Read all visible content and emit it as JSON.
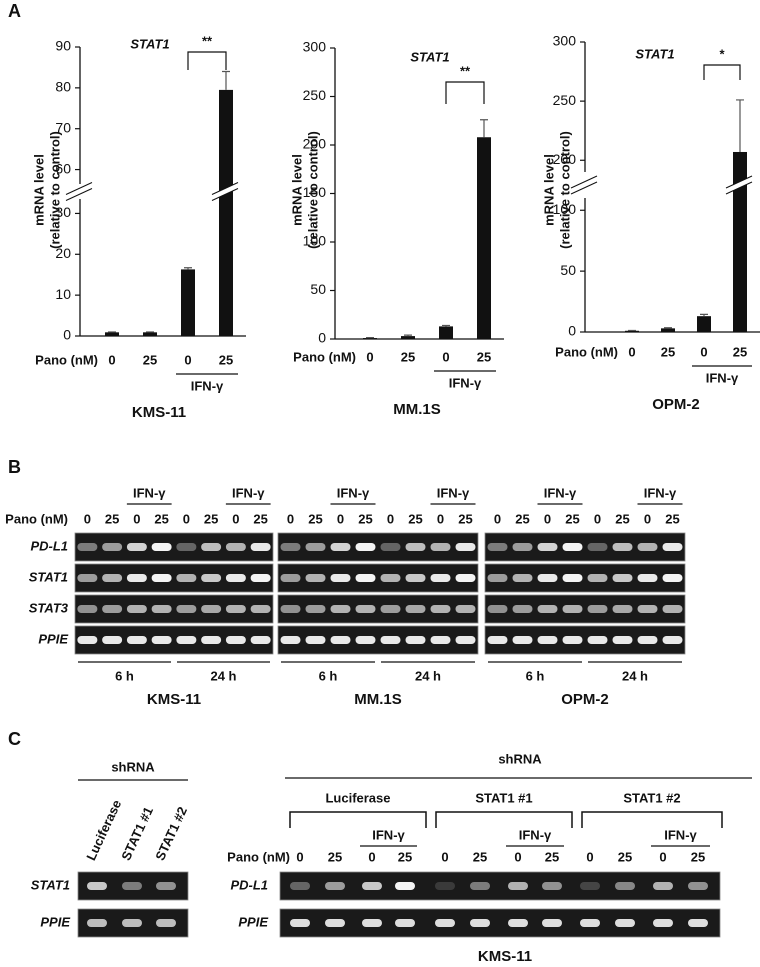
{
  "panel_a": {
    "label": "A"
  },
  "chart_data": [
    {
      "type": "bar",
      "title": "STAT1",
      "ylabel": [
        "mRNA level",
        "(relative to control)"
      ],
      "x_title": "Pano (nM)",
      "categories": [
        "0",
        "25",
        "0",
        "25"
      ],
      "group_label": "IFN-γ",
      "significance": "**",
      "cell_line": "KMS-11",
      "values": [
        0.9,
        0.9,
        16.3,
        79.5
      ],
      "errors": [
        0.1,
        0.1,
        0.4,
        4.5
      ],
      "color": "#111111",
      "ylim": [
        0,
        90
      ],
      "axis_break": [
        35,
        55
      ],
      "yticks": [
        0,
        10,
        20,
        30,
        60,
        70,
        80,
        90
      ]
    },
    {
      "type": "bar",
      "title": "STAT1",
      "ylabel": [
        "mRNA level",
        "(relative to control)"
      ],
      "x_title": "Pano (nM)",
      "categories": [
        "0",
        "25",
        "0",
        "25"
      ],
      "group_label": "IFN-γ",
      "significance": "**",
      "cell_line": "MM.1S",
      "values": [
        1,
        3,
        13,
        208
      ],
      "errors": [
        0.5,
        1,
        1,
        18
      ],
      "color": "#111111",
      "ylim": [
        0,
        300
      ],
      "yticks": [
        0,
        50,
        100,
        150,
        200,
        250,
        300
      ]
    },
    {
      "type": "bar",
      "title": "STAT1",
      "ylabel": [
        "mRNA level",
        "(relative to control)"
      ],
      "x_title": "Pano (nM)",
      "categories": [
        "0",
        "25",
        "0",
        "25"
      ],
      "group_label": "IFN-γ",
      "significance": "*",
      "cell_line": "OPM-2",
      "values": [
        1,
        3,
        13,
        207
      ],
      "errors": [
        0.3,
        0.5,
        1.5,
        44
      ],
      "color": "#111111",
      "ylim": [
        0,
        300
      ],
      "axis_break": [
        115,
        185
      ],
      "yticks": [
        0,
        50,
        100,
        200,
        250,
        300
      ]
    }
  ],
  "panel_b": {
    "label": "B",
    "pano": "Pano (nM)",
    "lanes": [
      "0",
      "25",
      "0",
      "25",
      "0",
      "25",
      "0",
      "25"
    ],
    "ifn": "IFN-γ",
    "rows": [
      "PD-L1",
      "STAT1",
      "STAT3",
      "PPIE"
    ],
    "times": [
      "6 h",
      "24 h"
    ],
    "cell_lines": [
      "KMS-11",
      "MM.1S",
      "OPM-2"
    ]
  },
  "panel_c": {
    "label": "C",
    "left": {
      "header": "shRNA",
      "lanes": [
        "Luciferase",
        "STAT1 #1",
        "STAT1 #2"
      ],
      "rows": [
        "STAT1",
        "PPIE"
      ]
    },
    "right": {
      "header": "shRNA",
      "groups": [
        "Luciferase",
        "STAT1 #1",
        "STAT1 #2"
      ],
      "ifn": "IFN-γ",
      "pano": "Pano (nM)",
      "lanes": [
        "0",
        "25",
        "0",
        "25"
      ],
      "rows": [
        "PD-L1",
        "PPIE"
      ],
      "cell_line": "KMS-11"
    }
  }
}
